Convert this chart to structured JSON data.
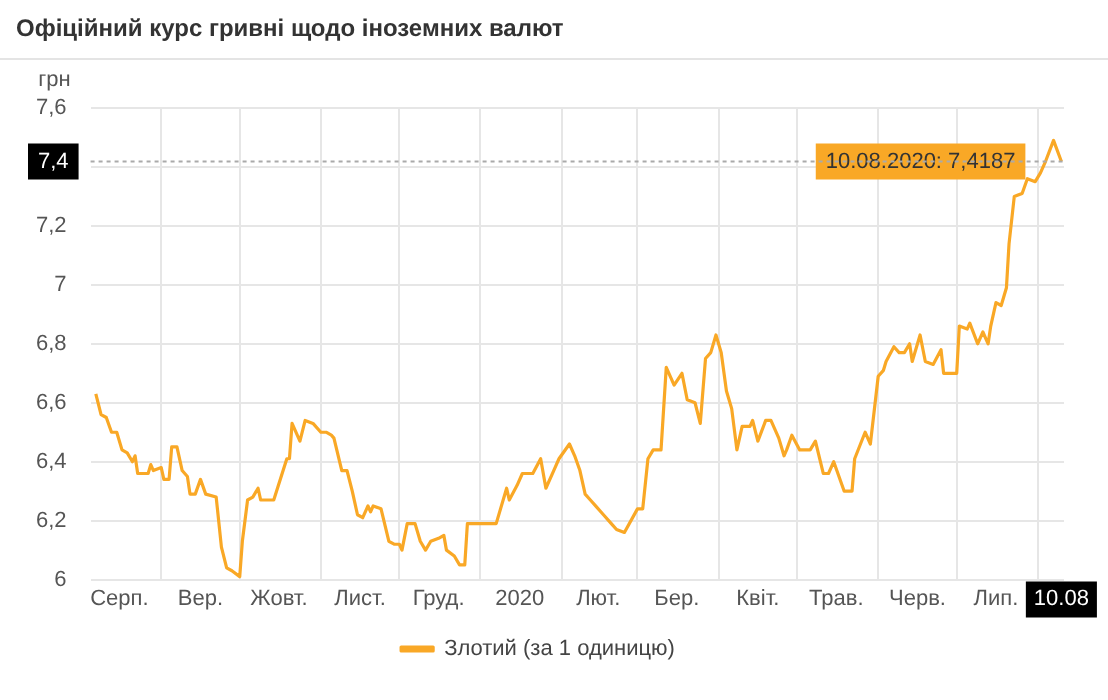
{
  "chart_data": {
    "type": "line",
    "title": "Офіційний курс гривні щодо іноземних валют",
    "ylabel": "грн",
    "x": [
      "2019-08-07",
      "2019-08-09",
      "2019-08-11",
      "2019-08-13",
      "2019-08-15",
      "2019-08-17",
      "2019-08-19",
      "2019-08-21",
      "2019-08-22",
      "2019-08-23",
      "2019-08-27",
      "2019-08-28",
      "2019-08-29",
      "2019-09-01",
      "2019-09-02",
      "2019-09-04",
      "2019-09-05",
      "2019-09-07",
      "2019-09-09",
      "2019-09-11",
      "2019-09-12",
      "2019-09-14",
      "2019-09-16",
      "2019-09-18",
      "2019-09-22",
      "2019-09-24",
      "2019-09-26",
      "2019-09-28",
      "2019-10-01",
      "2019-10-02",
      "2019-10-04",
      "2019-10-06",
      "2019-10-08",
      "2019-10-09",
      "2019-10-14",
      "2019-10-19",
      "2019-10-20",
      "2019-10-21",
      "2019-10-24",
      "2019-10-26",
      "2019-10-29",
      "2019-11-01",
      "2019-11-03",
      "2019-11-05",
      "2019-11-06",
      "2019-11-09",
      "2019-11-11",
      "2019-11-13",
      "2019-11-15",
      "2019-11-17",
      "2019-11-19",
      "2019-11-20",
      "2019-11-21",
      "2019-11-24",
      "2019-11-27",
      "2019-11-29",
      "2019-12-01",
      "2019-12-02",
      "2019-12-04",
      "2019-12-07",
      "2019-12-09",
      "2019-12-11",
      "2019-12-13",
      "2019-12-16",
      "2019-12-18",
      "2019-12-19",
      "2019-12-22",
      "2019-12-24",
      "2019-12-26",
      "2019-12-27",
      "2019-12-31",
      "2020-01-07",
      "2020-01-11",
      "2020-01-12",
      "2020-01-15",
      "2020-01-17",
      "2020-01-21",
      "2020-01-24",
      "2020-01-26",
      "2020-01-29",
      "2020-01-31",
      "2020-02-04",
      "2020-02-06",
      "2020-02-08",
      "2020-02-10",
      "2020-02-12",
      "2020-02-14",
      "2020-02-17",
      "2020-02-20",
      "2020-02-22",
      "2020-02-25",
      "2020-03-01",
      "2020-03-03",
      "2020-03-05",
      "2020-03-07",
      "2020-03-10",
      "2020-03-12",
      "2020-03-15",
      "2020-03-18",
      "2020-03-20",
      "2020-03-23",
      "2020-03-25",
      "2020-03-27",
      "2020-03-29",
      "2020-03-31",
      "2020-04-02",
      "2020-04-04",
      "2020-04-06",
      "2020-04-08",
      "2020-04-10",
      "2020-04-13",
      "2020-04-14",
      "2020-04-16",
      "2020-04-19",
      "2020-04-21",
      "2020-04-24",
      "2020-04-26",
      "2020-04-27",
      "2020-04-29",
      "2020-05-02",
      "2020-05-06",
      "2020-05-08",
      "2020-05-11",
      "2020-05-13",
      "2020-05-15",
      "2020-05-19",
      "2020-05-22",
      "2020-05-23",
      "2020-05-27",
      "2020-05-29",
      "2020-06-01",
      "2020-06-03",
      "2020-06-04",
      "2020-06-07",
      "2020-06-09",
      "2020-06-11",
      "2020-06-13",
      "2020-06-14",
      "2020-06-17",
      "2020-06-19",
      "2020-06-22",
      "2020-06-25",
      "2020-06-26",
      "2020-07-01",
      "2020-07-02",
      "2020-07-05",
      "2020-07-06",
      "2020-07-09",
      "2020-07-11",
      "2020-07-13",
      "2020-07-14",
      "2020-07-16",
      "2020-07-18",
      "2020-07-20",
      "2020-07-21",
      "2020-07-23",
      "2020-07-26",
      "2020-07-28",
      "2020-07-31",
      "2020-08-02",
      "2020-08-04",
      "2020-08-07",
      "2020-08-10"
    ],
    "series": [
      {
        "name": "Злотий (за 1 одиницю)",
        "color": "#f9a826",
        "values": [
          6.63,
          6.56,
          6.55,
          6.5,
          6.5,
          6.44,
          6.43,
          6.4,
          6.42,
          6.36,
          6.36,
          6.39,
          6.37,
          6.38,
          6.34,
          6.34,
          6.45,
          6.45,
          6.37,
          6.35,
          6.29,
          6.29,
          6.34,
          6.29,
          6.28,
          6.11,
          6.04,
          6.03,
          6.01,
          6.13,
          6.27,
          6.28,
          6.31,
          6.27,
          6.27,
          6.41,
          6.41,
          6.53,
          6.47,
          6.54,
          6.53,
          6.5,
          6.5,
          6.49,
          6.48,
          6.37,
          6.37,
          6.3,
          6.22,
          6.21,
          6.25,
          6.23,
          6.25,
          6.24,
          6.13,
          6.12,
          6.12,
          6.1,
          6.19,
          6.19,
          6.13,
          6.1,
          6.13,
          6.14,
          6.15,
          6.1,
          6.08,
          6.05,
          6.05,
          6.19,
          6.19,
          6.19,
          6.31,
          6.27,
          6.32,
          6.36,
          6.36,
          6.41,
          6.31,
          6.37,
          6.41,
          6.46,
          6.42,
          6.37,
          6.29,
          6.27,
          6.25,
          6.22,
          6.19,
          6.17,
          6.16,
          6.24,
          6.24,
          6.41,
          6.44,
          6.44,
          6.72,
          6.66,
          6.7,
          6.61,
          6.6,
          6.53,
          6.75,
          6.77,
          6.83,
          6.77,
          6.64,
          6.58,
          6.44,
          6.52,
          6.52,
          6.54,
          6.47,
          6.54,
          6.54,
          6.48,
          6.42,
          6.44,
          6.49,
          6.44,
          6.44,
          6.47,
          6.36,
          6.36,
          6.4,
          6.3,
          6.3,
          6.41,
          6.5,
          6.46,
          6.69,
          6.71,
          6.74,
          6.79,
          6.77,
          6.77,
          6.8,
          6.74,
          6.83,
          6.74,
          6.73,
          6.78,
          6.7,
          6.7,
          6.86,
          6.85,
          6.87,
          6.8,
          6.84,
          6.8,
          6.86,
          6.94,
          6.93,
          6.99,
          7.14,
          7.3,
          7.31,
          7.36,
          7.35,
          7.38,
          7.42,
          7.49,
          7.4187
        ]
      }
    ],
    "xlim": [
      "2019-08-05",
      "2020-08-11"
    ],
    "xticks": [
      {
        "value": "2019-08-16",
        "label": "Серп."
      },
      {
        "value": "2019-09-01",
        "label": null
      },
      {
        "value": "2019-09-16",
        "label": "Вер."
      },
      {
        "value": "2019-10-01",
        "label": null
      },
      {
        "value": "2019-10-16",
        "label": "Жовт."
      },
      {
        "value": "2019-11-01",
        "label": null
      },
      {
        "value": "2019-11-16",
        "label": "Лист."
      },
      {
        "value": "2019-12-01",
        "label": null
      },
      {
        "value": "2019-12-16",
        "label": "Груд."
      },
      {
        "value": "2020-01-01",
        "label": null
      },
      {
        "value": "2020-01-16",
        "label": "2020"
      },
      {
        "value": "2020-02-01",
        "label": null
      },
      {
        "value": "2020-02-15",
        "label": "Лют."
      },
      {
        "value": "2020-03-01",
        "label": null
      },
      {
        "value": "2020-03-16",
        "label": "Бер."
      },
      {
        "value": "2020-04-01",
        "label": null
      },
      {
        "value": "2020-04-16",
        "label": "Квіт."
      },
      {
        "value": "2020-05-01",
        "label": null
      },
      {
        "value": "2020-05-16",
        "label": "Трав."
      },
      {
        "value": "2020-06-01",
        "label": null
      },
      {
        "value": "2020-06-16",
        "label": "Черв."
      },
      {
        "value": "2020-07-01",
        "label": null
      },
      {
        "value": "2020-07-16",
        "label": "Лип."
      },
      {
        "value": "2020-08-01",
        "label": null
      },
      {
        "value": "2020-08-10",
        "label": "10.08"
      }
    ],
    "ylim": [
      6,
      7.6
    ],
    "yticks": [
      6,
      {
        "value": 6.2,
        "label": "6,2"
      },
      {
        "value": 6.4,
        "label": "6,4"
      },
      {
        "value": 6.6,
        "label": "6,6"
      },
      {
        "value": 6.8,
        "label": "6,8"
      },
      7,
      {
        "value": 7.2,
        "label": "7,2"
      },
      {
        "value": 7.4,
        "label": null
      },
      {
        "value": 7.6,
        "label": "7,6"
      }
    ],
    "grid": true,
    "legend": "bottom",
    "marker": "none",
    "line_style": "solid",
    "ref_lines": [
      {
        "axis": "y",
        "value": 7.4187,
        "label": "7,4",
        "line_style": "dotted"
      }
    ],
    "annotations": [
      {
        "text": "10.08.2020: 7,4187",
        "x": "2020-08-10",
        "y": 7.4187
      }
    ]
  }
}
